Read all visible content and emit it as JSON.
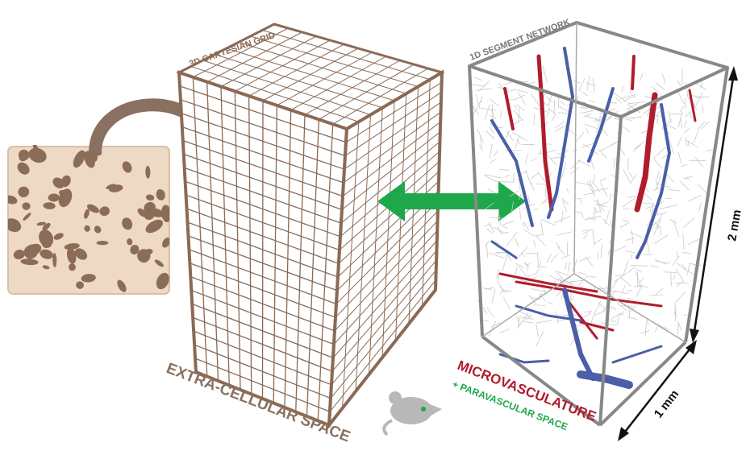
{
  "labels": {
    "grid_title": "3D CARTESIAN GRID",
    "network_title": "1D SEGMENT NETWORK",
    "extracellular": "EXTRA-CELLULAR SPACE",
    "microvasculature": "MICROVASCULATURE",
    "paravascular": "+ PARAVASCULAR SPACE",
    "height_dim": "2 mm",
    "depth_dim": "1 mm"
  },
  "colors": {
    "grid_brown": "#8a6a55",
    "tissue": "#eed9c4",
    "tissue_shadow": "#7a5a45",
    "arrow_curved": "#8a7060",
    "arrow_green": "#1ea84b",
    "network_frame": "#888888",
    "network_mesh": "#c9c9c9",
    "artery_red": "#b01c2c",
    "vein_blue": "#4a5fa8",
    "para_green": "#1ea84b",
    "mouse_grey": "#b8b8b8"
  },
  "icons": [
    "curved-arrow-icon",
    "double-arrow-icon",
    "mouse-icon"
  ]
}
